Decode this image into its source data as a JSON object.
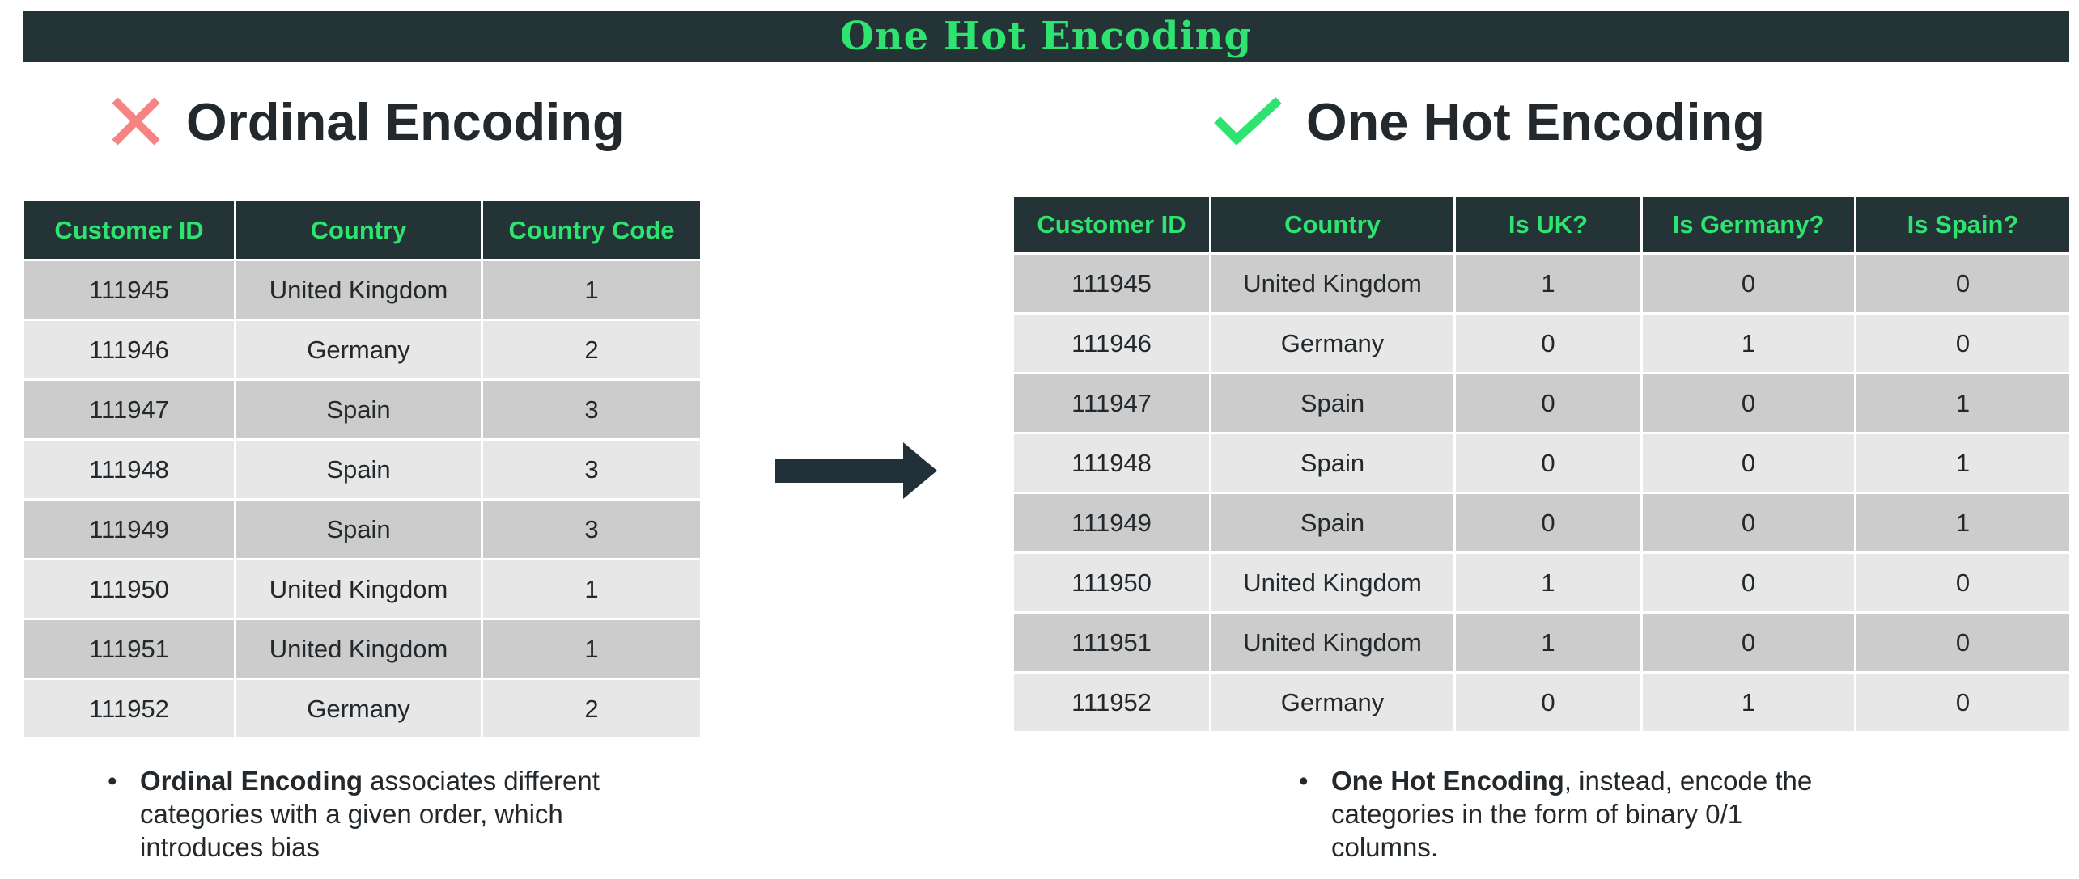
{
  "banner": {
    "title": "One Hot Encoding"
  },
  "left": {
    "heading": "Ordinal Encoding",
    "icon": "cross-icon",
    "icon_color": "#f88383",
    "columns": [
      "Customer ID",
      "Country",
      "Country Code"
    ],
    "rows": [
      [
        "111945",
        "United Kingdom",
        "1"
      ],
      [
        "111946",
        "Germany",
        "2"
      ],
      [
        "111947",
        "Spain",
        "3"
      ],
      [
        "111948",
        "Spain",
        "3"
      ],
      [
        "111949",
        "Spain",
        "3"
      ],
      [
        "111950",
        "United Kingdom",
        "1"
      ],
      [
        "111951",
        "United Kingdom",
        "1"
      ],
      [
        "111952",
        "Germany",
        "2"
      ]
    ],
    "note": {
      "bold": "Ordinal Encoding",
      "rest": " associates different categories with a given order, which introduces bias"
    }
  },
  "right": {
    "heading": "One Hot Encoding",
    "icon": "checkmark-icon",
    "icon_color": "#2ee36f",
    "columns": [
      "Customer ID",
      "Country",
      "Is UK?",
      "Is Germany?",
      "Is Spain?"
    ],
    "rows": [
      [
        "111945",
        "United Kingdom",
        "1",
        "0",
        "0"
      ],
      [
        "111946",
        "Germany",
        "0",
        "1",
        "0"
      ],
      [
        "111947",
        "Spain",
        "0",
        "0",
        "1"
      ],
      [
        "111948",
        "Spain",
        "0",
        "0",
        "1"
      ],
      [
        "111949",
        "Spain",
        "0",
        "0",
        "1"
      ],
      [
        "111950",
        "United Kingdom",
        "1",
        "0",
        "0"
      ],
      [
        "111951",
        "United Kingdom",
        "1",
        "0",
        "0"
      ],
      [
        "111952",
        "Germany",
        "0",
        "1",
        "0"
      ]
    ],
    "note": {
      "bold": "One Hot Encoding",
      "rest": ", instead, encode the categories in the form of binary 0/1 columns."
    }
  },
  "arrow": {
    "icon": "right-arrow-icon"
  },
  "bullet": "•",
  "colors": {
    "header_bg": "#233336",
    "accent": "#2ee36f",
    "row_dark": "#cbcccb",
    "row_light": "#e7e7e7"
  }
}
